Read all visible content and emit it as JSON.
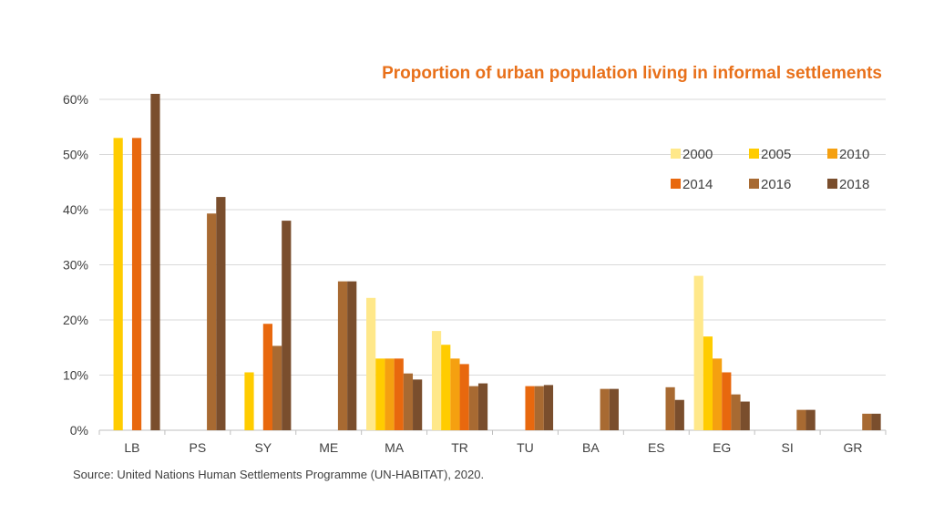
{
  "chart_data": {
    "type": "bar",
    "title": "Proportion of urban population living in informal settlements",
    "xlabel": "",
    "ylabel": "",
    "ylim": [
      0,
      60
    ],
    "ytick_values": [
      0,
      10,
      20,
      30,
      40,
      50,
      60
    ],
    "ytick_labels": [
      "0%",
      "10%",
      "20%",
      "30%",
      "40%",
      "50%",
      "60%"
    ],
    "grid": true,
    "legend_position": "top-right",
    "categories": [
      "LB",
      "PS",
      "SY",
      "ME",
      "MA",
      "TR",
      "TU",
      "BA",
      "ES",
      "EG",
      "SI",
      "GR"
    ],
    "series": [
      {
        "name": "2000",
        "color": "#FFE88A",
        "values": [
          null,
          null,
          null,
          null,
          24,
          18,
          null,
          null,
          null,
          28,
          null,
          null
        ]
      },
      {
        "name": "2005",
        "color": "#FFCC00",
        "values": [
          53,
          null,
          10.5,
          null,
          13,
          15.5,
          null,
          null,
          null,
          17,
          null,
          null
        ]
      },
      {
        "name": "2010",
        "color": "#F5A010",
        "values": [
          null,
          null,
          null,
          null,
          13,
          13,
          null,
          null,
          null,
          13,
          null,
          null
        ]
      },
      {
        "name": "2014",
        "color": "#E8680E",
        "values": [
          53,
          null,
          19.3,
          null,
          13,
          12,
          8,
          null,
          null,
          10.5,
          null,
          null
        ]
      },
      {
        "name": "2016",
        "color": "#A86A32",
        "values": [
          null,
          39.3,
          15.3,
          27,
          10.3,
          8,
          8,
          7.5,
          7.8,
          6.5,
          3.7,
          3
        ]
      },
      {
        "name": "2018",
        "color": "#7A4E2D",
        "values": [
          61,
          42.3,
          38,
          27,
          9.2,
          8.5,
          8.2,
          7.5,
          5.5,
          5.2,
          3.7,
          3
        ]
      }
    ],
    "source": "Source: United Nations Human Settlements Programme (UN-HABITAT), 2020."
  }
}
